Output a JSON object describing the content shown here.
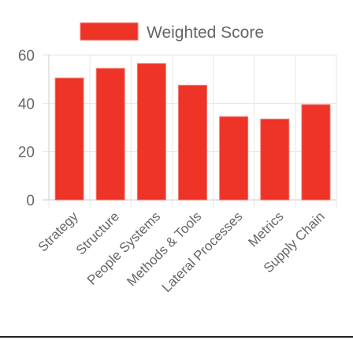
{
  "chart_data": {
    "type": "bar",
    "categories": [
      "Strategy",
      "Structure",
      "People Systems",
      "Methods & Tools",
      "Lateral Processes",
      "Metrics",
      "Supply Chain"
    ],
    "series": [
      {
        "name": "Weighted Score",
        "values": [
          50.5,
          54.5,
          56.5,
          47.5,
          34.5,
          33.5,
          39.5
        ]
      }
    ],
    "ylim": [
      0,
      60
    ],
    "yticks": [
      0,
      20,
      40,
      60
    ],
    "grid": true,
    "legend": "top",
    "colors": {
      "bar_fill": "#ee3327",
      "bar_stroke": "#f07a72",
      "grid": "#e6e6e6",
      "axis": "#cccccc",
      "text": "#666666"
    }
  }
}
